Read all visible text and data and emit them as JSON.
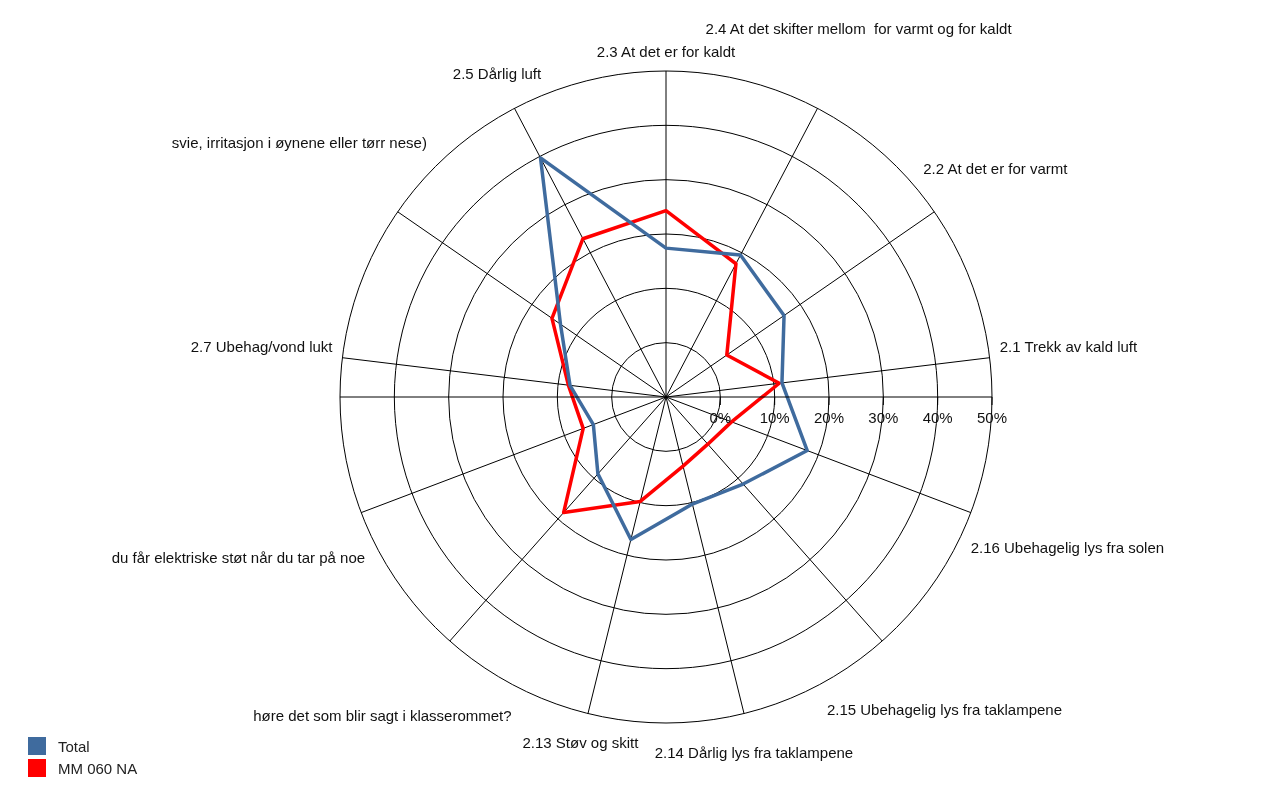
{
  "chart_data": {
    "type": "radar",
    "categories": [
      "2.3 At det er for kaldt",
      "2.4 At det skifter mellom  for varmt og for kaldt",
      "2.2 At det er for varmt",
      "2.1 Trekk av kald luft",
      "2.16 Ubehagelig lys fra solen",
      "2.15 Ubehagelig lys fra taklampene",
      "2.14 Dårlig lys fra taklampene",
      "2.13 Støv og skitt",
      "høre det som blir sagt i klasserommet?",
      "du får elektriske støt når du tar på noe",
      "2.7 Ubehag/vond lukt",
      "svie, irritasjon i øynene eller tørr nese)",
      "2.5 Dårlig luft"
    ],
    "series": [
      {
        "name": "Total",
        "color": "#3f6b9e",
        "values": [
          17.4,
          19.5,
          16.4,
          11.5,
          17.8,
          11.4,
          10.3,
          17,
          8.9,
          4.3,
          7.8,
          13.6,
          39.7
        ]
      },
      {
        "name": "MM 060 NA",
        "color": "#ff0000",
        "values": [
          24.3,
          17.7,
          3.6,
          11,
          2.9,
          1.6,
          3.1,
          9.8,
          18.4,
          6.3,
          8.1,
          15.5,
          22.9
        ]
      }
    ],
    "ylim": [
      -10,
      50
    ],
    "yticks": [
      {
        "value": 0,
        "label": "0%"
      },
      {
        "value": 10,
        "label": "10%"
      },
      {
        "value": 20,
        "label": "20%"
      },
      {
        "value": 30,
        "label": "30%"
      },
      {
        "value": 40,
        "label": "40%"
      },
      {
        "value": 50,
        "label": "50%"
      }
    ],
    "grid": true,
    "legend": "bottom left",
    "marker": "none",
    "line_style": "solid"
  }
}
